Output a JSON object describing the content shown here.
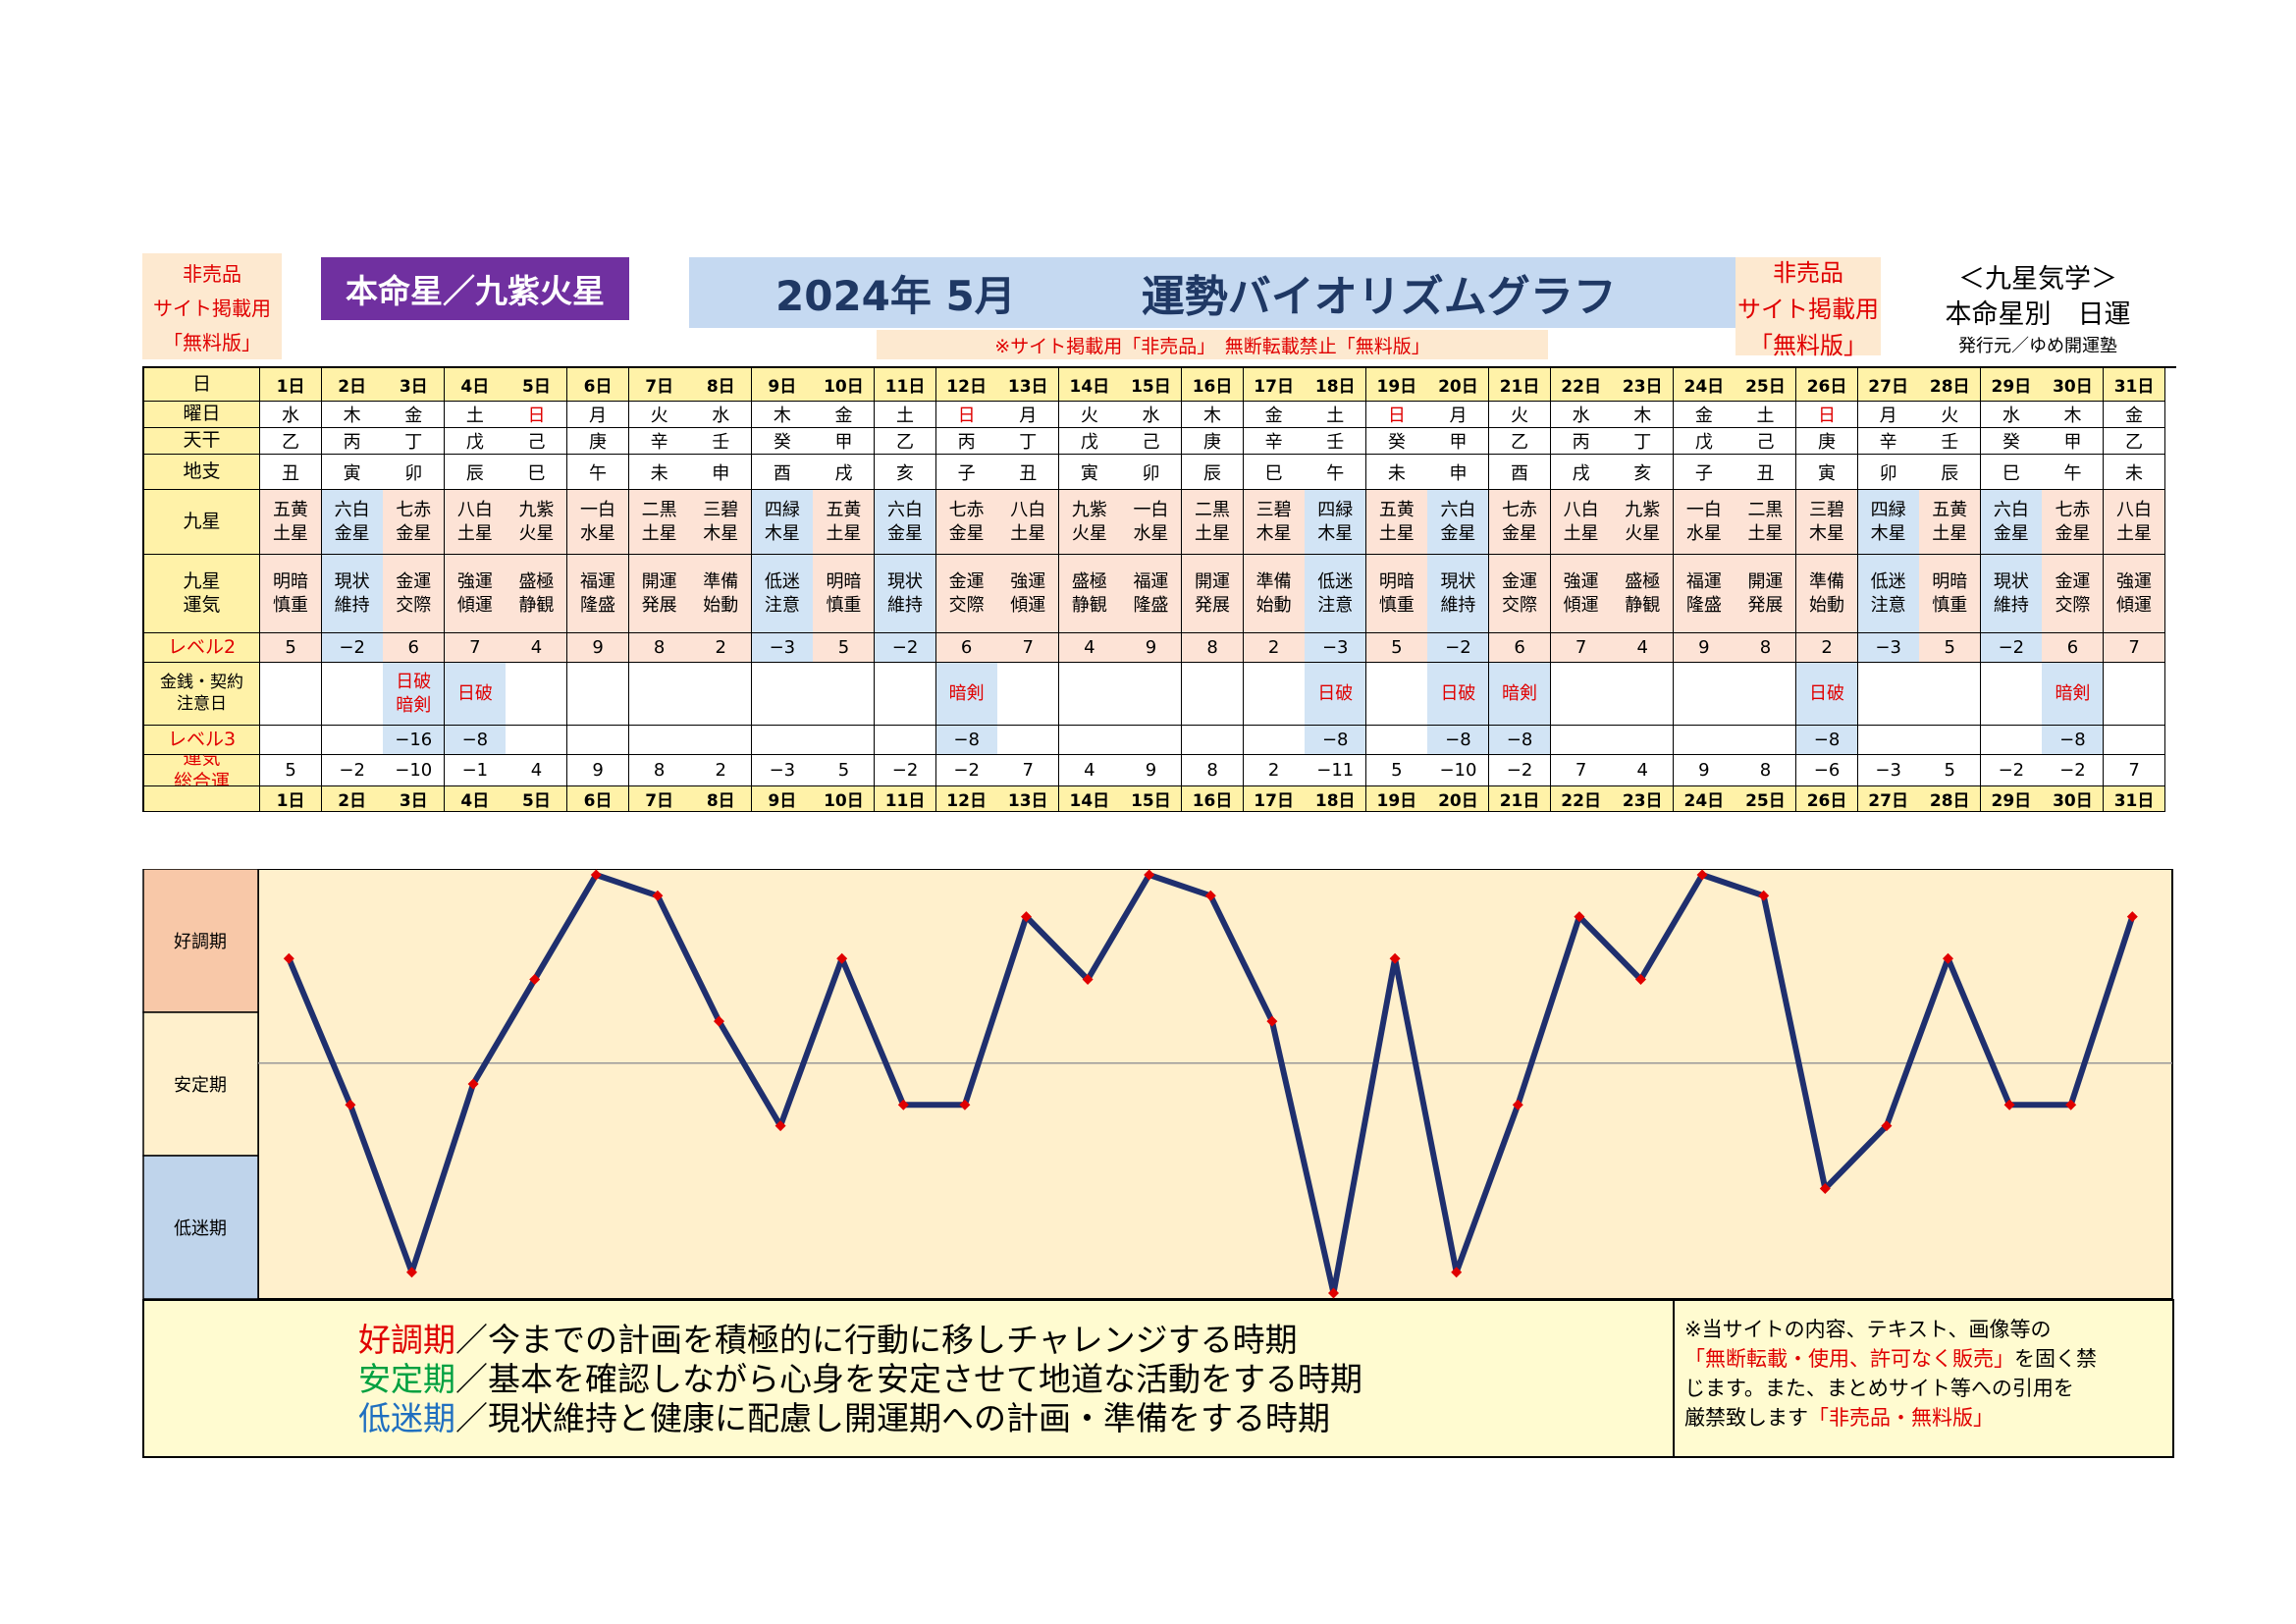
{
  "header": {
    "nonsale_left": [
      "非売品",
      "サイト掲載用",
      "「無料版」"
    ],
    "honmei_badge": "本命星／九紫火星",
    "title_year": "2024年 5月",
    "title_main": "運勢バイオリズムグラフ",
    "notice_strip": "※サイト掲載用「非売品」　無断転載禁止「無料版」",
    "nonsale_right": [
      "非売品",
      "サイト掲載用",
      "「無料版」"
    ],
    "kyusei_title": "＜九星気学＞",
    "kyusei_sub": "本命星別　日運",
    "publisher": "発行元／ゆめ開運塾"
  },
  "table": {
    "row_labels": {
      "day": "日",
      "weekday": "曜日",
      "tenkan": "天干",
      "chishi": "地支",
      "kyusei": "九星",
      "kyusei_unki": "九星\n運気",
      "level2": "レベル2",
      "kinsen": "金銭・契約\n注意日",
      "level3": "レベル3",
      "sogo": "運気\n総合運"
    },
    "days": [
      "1日",
      "2日",
      "3日",
      "4日",
      "5日",
      "6日",
      "7日",
      "8日",
      "9日",
      "10日",
      "11日",
      "12日",
      "13日",
      "14日",
      "15日",
      "16日",
      "17日",
      "18日",
      "19日",
      "20日",
      "21日",
      "22日",
      "23日",
      "24日",
      "25日",
      "26日",
      "27日",
      "28日",
      "29日",
      "30日",
      "31日"
    ],
    "weekdays": [
      "水",
      "木",
      "金",
      "土",
      "日",
      "月",
      "火",
      "水",
      "木",
      "金",
      "土",
      "日",
      "月",
      "火",
      "水",
      "木",
      "金",
      "土",
      "日",
      "月",
      "火",
      "水",
      "木",
      "金",
      "土",
      "日",
      "月",
      "火",
      "水",
      "木",
      "金"
    ],
    "tenkan": [
      "乙",
      "丙",
      "丁",
      "戊",
      "己",
      "庚",
      "辛",
      "壬",
      "癸",
      "甲",
      "乙",
      "丙",
      "丁",
      "戊",
      "己",
      "庚",
      "辛",
      "壬",
      "癸",
      "甲",
      "乙",
      "丙",
      "丁",
      "戊",
      "己",
      "庚",
      "辛",
      "壬",
      "癸",
      "甲",
      "乙"
    ],
    "chishi": [
      "丑",
      "寅",
      "卯",
      "辰",
      "巳",
      "午",
      "未",
      "申",
      "酉",
      "戌",
      "亥",
      "子",
      "丑",
      "寅",
      "卯",
      "辰",
      "巳",
      "午",
      "未",
      "申",
      "酉",
      "戌",
      "亥",
      "子",
      "丑",
      "寅",
      "卯",
      "辰",
      "巳",
      "午",
      "未"
    ],
    "kyusei": [
      [
        "五黄",
        "土星"
      ],
      [
        "六白",
        "金星"
      ],
      [
        "七赤",
        "金星"
      ],
      [
        "八白",
        "土星"
      ],
      [
        "九紫",
        "火星"
      ],
      [
        "一白",
        "水星"
      ],
      [
        "二黒",
        "土星"
      ],
      [
        "三碧",
        "木星"
      ],
      [
        "四緑",
        "木星"
      ],
      [
        "五黄",
        "土星"
      ],
      [
        "六白",
        "金星"
      ],
      [
        "七赤",
        "金星"
      ],
      [
        "八白",
        "土星"
      ],
      [
        "九紫",
        "火星"
      ],
      [
        "一白",
        "水星"
      ],
      [
        "二黒",
        "土星"
      ],
      [
        "三碧",
        "木星"
      ],
      [
        "四緑",
        "木星"
      ],
      [
        "五黄",
        "土星"
      ],
      [
        "六白",
        "金星"
      ],
      [
        "七赤",
        "金星"
      ],
      [
        "八白",
        "土星"
      ],
      [
        "九紫",
        "火星"
      ],
      [
        "一白",
        "水星"
      ],
      [
        "二黒",
        "土星"
      ],
      [
        "三碧",
        "木星"
      ],
      [
        "四緑",
        "木星"
      ],
      [
        "五黄",
        "土星"
      ],
      [
        "六白",
        "金星"
      ],
      [
        "七赤",
        "金星"
      ],
      [
        "八白",
        "土星"
      ]
    ],
    "unki": [
      [
        "明暗",
        "慎重"
      ],
      [
        "現状",
        "維持"
      ],
      [
        "金運",
        "交際"
      ],
      [
        "強運",
        "傾運"
      ],
      [
        "盛極",
        "静観"
      ],
      [
        "福運",
        "隆盛"
      ],
      [
        "開運",
        "発展"
      ],
      [
        "準備",
        "始動"
      ],
      [
        "低迷",
        "注意"
      ],
      [
        "明暗",
        "慎重"
      ],
      [
        "現状",
        "維持"
      ],
      [
        "金運",
        "交際"
      ],
      [
        "強運",
        "傾運"
      ],
      [
        "盛極",
        "静観"
      ],
      [
        "福運",
        "隆盛"
      ],
      [
        "開運",
        "発展"
      ],
      [
        "準備",
        "始動"
      ],
      [
        "低迷",
        "注意"
      ],
      [
        "明暗",
        "慎重"
      ],
      [
        "現状",
        "維持"
      ],
      [
        "金運",
        "交際"
      ],
      [
        "強運",
        "傾運"
      ],
      [
        "盛極",
        "静観"
      ],
      [
        "福運",
        "隆盛"
      ],
      [
        "開運",
        "発展"
      ],
      [
        "準備",
        "始動"
      ],
      [
        "低迷",
        "注意"
      ],
      [
        "明暗",
        "慎重"
      ],
      [
        "現状",
        "維持"
      ],
      [
        "金運",
        "交際"
      ],
      [
        "強運",
        "傾運"
      ]
    ],
    "level2": [
      "5",
      "−2",
      "6",
      "7",
      "4",
      "9",
      "8",
      "2",
      "−3",
      "5",
      "−2",
      "6",
      "7",
      "4",
      "9",
      "8",
      "2",
      "−3",
      "5",
      "−2",
      "6",
      "7",
      "4",
      "9",
      "8",
      "2",
      "−3",
      "5",
      "−2",
      "6",
      "7"
    ],
    "kinsen": [
      [],
      [],
      [
        "日破",
        "暗剣"
      ],
      [
        "日破"
      ],
      [],
      [],
      [],
      [],
      [],
      [],
      [],
      [
        "暗剣"
      ],
      [],
      [],
      [],
      [],
      [],
      [
        "日破"
      ],
      [],
      [
        "日破"
      ],
      [
        "暗剣"
      ],
      [],
      [],
      [],
      [],
      [
        "日破"
      ],
      [],
      [],
      [],
      [
        "暗剣"
      ],
      []
    ],
    "level3": [
      "",
      "",
      "−16",
      "−8",
      "",
      "",
      "",
      "",
      "",
      "",
      "",
      "−8",
      "",
      "",
      "",
      "",
      "",
      "−8",
      "",
      "−8",
      "−8",
      "",
      "",
      "",
      "",
      "−8",
      "",
      "",
      "",
      "−8",
      ""
    ],
    "sogo": [
      "5",
      "−2",
      "−10",
      "−1",
      "4",
      "9",
      "8",
      "2",
      "−3",
      "5",
      "−2",
      "−2",
      "7",
      "4",
      "9",
      "8",
      "2",
      "−11",
      "5",
      "−10",
      "−2",
      "7",
      "4",
      "9",
      "8",
      "−6",
      "−3",
      "5",
      "−2",
      "−2",
      "7"
    ]
  },
  "colors": {
    "header_yellow": "#fff2a8",
    "cream": "#fff0cc",
    "peach": "#fde3d6",
    "light_blue": "#d2e4f5",
    "title_blue": "#c5d9f1",
    "purple": "#7030a0",
    "pink_band": "#f8c8a8",
    "blue_band": "#bfd4eb",
    "line": "#1f2f6e",
    "marker": "#e00000"
  },
  "chart_data": {
    "type": "line",
    "x": [
      1,
      2,
      3,
      4,
      5,
      6,
      7,
      8,
      9,
      10,
      11,
      12,
      13,
      14,
      15,
      16,
      17,
      18,
      19,
      20,
      21,
      22,
      23,
      24,
      25,
      26,
      27,
      28,
      29,
      30,
      31
    ],
    "values": [
      5,
      -2,
      -10,
      -1,
      4,
      9,
      8,
      2,
      -3,
      5,
      -2,
      -2,
      7,
      4,
      9,
      8,
      2,
      -11,
      5,
      -10,
      -2,
      7,
      4,
      9,
      8,
      -6,
      -3,
      5,
      -2,
      -2,
      7
    ],
    "ylim": [
      -11,
      9
    ],
    "band_labels": [
      "好調期",
      "安定期",
      "低迷期"
    ],
    "x_labels_row": "days"
  },
  "legend": {
    "lines": [
      {
        "term": "好調期",
        "text": "／今までの計画を積極的に行動に移しチャレンジする時期",
        "color": "#e00000"
      },
      {
        "term": "安定期",
        "text": "／基本を確認しながら心身を安定させて地道な活動をする時期",
        "color": "#00a040"
      },
      {
        "term": "低迷期",
        "text": "／現状維持と健康に配慮し開運期への計画・準備をする時期",
        "color": "#1f6fc0"
      }
    ],
    "note_lines": [
      [
        {
          "t": "※当サイトの内容、テキスト、画像等の",
          "red": false
        }
      ],
      [
        {
          "t": "「無断転載・使用、許可なく販売」",
          "red": true
        },
        {
          "t": "を固く禁",
          "red": false
        }
      ],
      [
        {
          "t": "じます。また、まとめサイト等への引用を",
          "red": false
        }
      ],
      [
        {
          "t": "厳禁致します",
          "red": false
        },
        {
          "t": "「非売品・無料版」",
          "red": true
        }
      ]
    ]
  }
}
